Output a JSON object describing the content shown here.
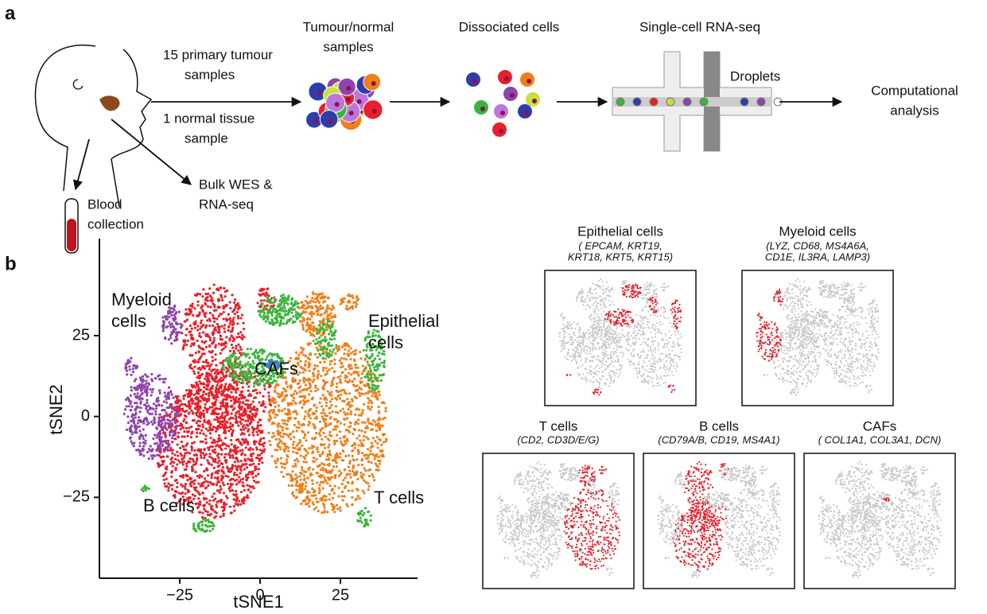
{
  "panel_a": {
    "label": "a",
    "tumour_arrow": [
      "15  primary tumour",
      "samples"
    ],
    "normal_arrow": [
      "1  normal tissue",
      "sample"
    ],
    "blood": [
      "Blood",
      "collection"
    ],
    "bulk": [
      "Bulk WES &",
      "RNA-seq"
    ],
    "samples": [
      "Tumour/normal",
      "samples"
    ],
    "dissociated": "Dissociated cells",
    "scrnaseq": "Single-cell RNA-seq",
    "droplets": "Droplets",
    "analysis": [
      "Computational",
      "analysis"
    ]
  },
  "panel_b": {
    "label": "b",
    "tsne": {
      "xlabel": "tSNE1",
      "ylabel": "tSNE2",
      "xlim": [
        -50,
        49
      ],
      "ylim": [
        -50,
        55
      ],
      "xticks": [
        {
          "value": -25,
          "label": "−25"
        },
        0,
        25
      ],
      "yticks": [
        {
          "value": -25,
          "label": "−25"
        },
        0,
        25
      ],
      "clusters": [
        {
          "name": [
            "Myeloid",
            "cells"
          ],
          "color": "#8e44ad"
        },
        {
          "name": [
            "Epithelial",
            "cells"
          ],
          "color": "#3cb43c"
        },
        {
          "name": [
            "CAFs"
          ],
          "color": "#3a7bc8"
        },
        {
          "name": [
            "B cells"
          ],
          "color": "#e8202a"
        },
        {
          "name": [
            "T cells"
          ],
          "color": "#f07f1a"
        }
      ]
    },
    "markers": [
      {
        "title": "Epithelial cells",
        "genes": [
          "( EPCAM, KRT19,",
          "KRT18, KRT5, KRT15)"
        ]
      },
      {
        "title": "Myeloid cells",
        "genes": [
          "(LYZ, CD68, MS4A6A,",
          "CD1E, IL3RA, LAMP3)"
        ]
      },
      {
        "title": "T cells",
        "genes": [
          "(CD2, CD3D/E/G)"
        ]
      },
      {
        "title": "B cells",
        "genes": [
          "(CD79A/B, CD19, MS4A1)"
        ]
      },
      {
        "title": "CAFs",
        "genes": [
          "( COL1A1, COL3A1, DCN)"
        ]
      }
    ]
  }
}
